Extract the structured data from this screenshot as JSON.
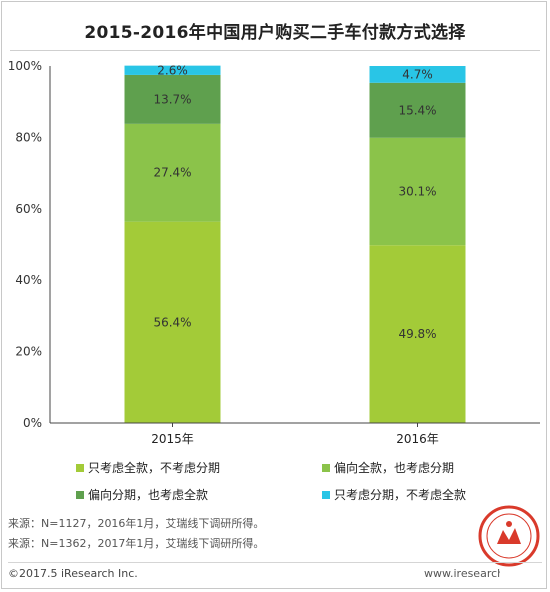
{
  "chart_data": {
    "type": "bar",
    "stacked": true,
    "title": "2015-2016年中国用户购买二手车付款方式选择",
    "categories": [
      "2015年",
      "2016年"
    ],
    "ylim": [
      0,
      100
    ],
    "yticks": [
      "0%",
      "20%",
      "40%",
      "60%",
      "80%",
      "100%"
    ],
    "grid": false,
    "legend_position": "bottom",
    "series": [
      {
        "name": "只考虑全款，不考虑分期",
        "values": [
          56.4,
          49.8
        ],
        "labels": [
          "56.4%",
          "49.8%"
        ],
        "color": "#a3cb38"
      },
      {
        "name": "偏向全款，也考虑分期",
        "values": [
          27.4,
          30.1
        ],
        "labels": [
          "27.4%",
          "30.1%"
        ],
        "color": "#8bc34a"
      },
      {
        "name": "偏向分期，也考虑全款",
        "values": [
          13.7,
          15.4
        ],
        "labels": [
          "13.7%",
          "15.4%"
        ],
        "color": "#5fa04e"
      },
      {
        "name": "只考虑分期，不考虑全款",
        "values": [
          2.6,
          4.7
        ],
        "labels": [
          "2.6%",
          "4.7%"
        ],
        "color": "#29c5e6"
      }
    ]
  },
  "sources": [
    "来源：N=1127，2016年1月，艾瑞线下调研所得。",
    "来源：N=1362，2017年1月，艾瑞线下调研所得。"
  ],
  "footer": {
    "copyright": "©2017.5 iResearch Inc.",
    "website": "www.iresearch.com.cn"
  }
}
